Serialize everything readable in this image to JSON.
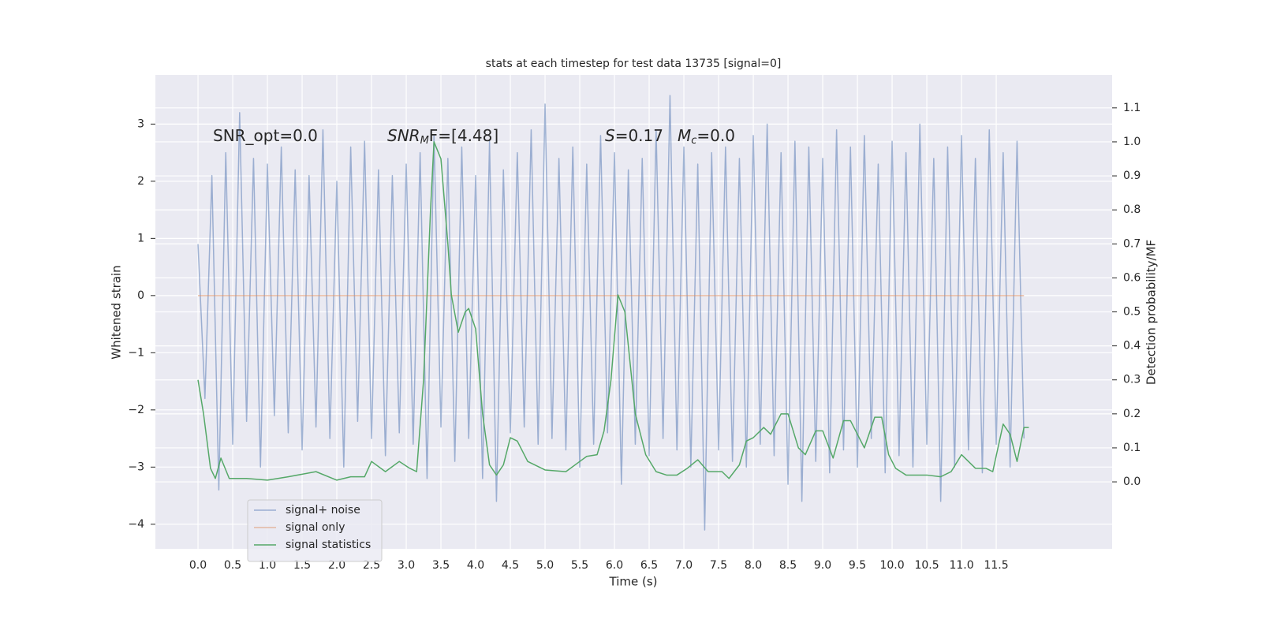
{
  "chart_data": {
    "type": "line",
    "title": "stats at each timestep for test data 13735 [signal=0]",
    "xlabel": "Time (s)",
    "ylabel": "Whitened strain",
    "y2label": "Detection probability/MF",
    "grid": true,
    "legend": "lower left",
    "xlim": [
      -0.614,
      13.17
    ],
    "ylim": [
      -4.43,
      3.86
    ],
    "y2lim": [
      -0.197,
      1.197
    ],
    "xticks": [
      {
        "value": 0,
        "label": "0.0"
      },
      0.5,
      {
        "value": 1,
        "label": "1.0"
      },
      1.5,
      {
        "value": 2,
        "label": "2.0"
      },
      2.5,
      {
        "value": 3,
        "label": "3.0"
      },
      3.5,
      {
        "value": 4,
        "label": "4.0"
      },
      4.5,
      {
        "value": 5,
        "label": "5.0"
      },
      5.5,
      {
        "value": 6,
        "label": "6.0"
      },
      6.5,
      {
        "value": 7,
        "label": "7.0"
      },
      7.5,
      {
        "value": 8,
        "label": "8.0"
      },
      8.5,
      {
        "value": 9,
        "label": "9.0"
      },
      9.5,
      {
        "value": 10,
        "label": "10.0"
      },
      10.5,
      {
        "value": 11,
        "label": "11.0"
      },
      11.5
    ],
    "yticks": [
      {
        "value": -4,
        "label": "−4"
      },
      {
        "value": -3,
        "label": "−3"
      },
      {
        "value": -2,
        "label": "−2"
      },
      {
        "value": -1,
        "label": "−1"
      },
      0,
      1,
      2,
      3
    ],
    "y2ticks": [
      {
        "value": 0,
        "label": "0.0"
      },
      0.1,
      0.2,
      0.3,
      0.4,
      0.5,
      0.6,
      0.7,
      0.8,
      0.9,
      {
        "value": 1,
        "label": "1.0"
      },
      1.1
    ],
    "annotations": [
      {
        "text": "SNR_opt=0.0"
      },
      {
        "italic": "SNR",
        "sub": "M",
        "rest": "F=[4.48]"
      },
      {
        "italic": "S",
        "rest": "=0.17"
      },
      {
        "italic": "M",
        "sub": "c",
        "rest": "=0.0"
      }
    ],
    "series": [
      {
        "name": "signal+ noise",
        "color": "#4c72b0",
        "alpha": 0.5,
        "axis": "y",
        "x": [
          0.0,
          0.1,
          0.2,
          0.3,
          0.4,
          0.5,
          0.6,
          0.7,
          0.8,
          0.9,
          1.0,
          1.1,
          1.2,
          1.3,
          1.4,
          1.5,
          1.6,
          1.7,
          1.8,
          1.9,
          2.0,
          2.1,
          2.2,
          2.3,
          2.4,
          2.5,
          2.6,
          2.7,
          2.8,
          2.9,
          3.0,
          3.1,
          3.2,
          3.3,
          3.4,
          3.5,
          3.6,
          3.7,
          3.8,
          3.9,
          4.0,
          4.1,
          4.2,
          4.3,
          4.4,
          4.5,
          4.6,
          4.7,
          4.8,
          4.9,
          5.0,
          5.1,
          5.2,
          5.3,
          5.4,
          5.5,
          5.6,
          5.7,
          5.8,
          5.9,
          6.0,
          6.1,
          6.2,
          6.3,
          6.4,
          6.5,
          6.6,
          6.7,
          6.8,
          6.9,
          7.0,
          7.1,
          7.2,
          7.3,
          7.4,
          7.5,
          7.6,
          7.7,
          7.8,
          7.9,
          8.0,
          8.1,
          8.2,
          8.3,
          8.4,
          8.5,
          8.6,
          8.7,
          8.8,
          8.9,
          9.0,
          9.1,
          9.2,
          9.3,
          9.4,
          9.5,
          9.6,
          9.7,
          9.8,
          9.9,
          10.0,
          10.1,
          10.2,
          10.3,
          10.4,
          10.5,
          10.6,
          10.7,
          10.8,
          10.9,
          11.0,
          11.1,
          11.2,
          11.3,
          11.4,
          11.5,
          11.6,
          11.7,
          11.8,
          11.9
        ],
        "values": [
          0.9,
          -1.8,
          2.1,
          -3.4,
          2.5,
          -2.6,
          3.2,
          -2.2,
          2.4,
          -3.0,
          2.3,
          -2.1,
          2.6,
          -2.4,
          2.2,
          -2.7,
          2.1,
          -2.3,
          2.9,
          -2.5,
          2.0,
          -3.0,
          2.6,
          -2.2,
          2.7,
          -2.5,
          2.2,
          -2.8,
          2.1,
          -2.4,
          2.3,
          -2.6,
          2.5,
          -3.2,
          2.8,
          -2.3,
          2.4,
          -2.9,
          2.6,
          -2.5,
          2.1,
          -3.2,
          2.7,
          -3.6,
          2.2,
          -2.4,
          2.5,
          -2.3,
          2.9,
          -2.6,
          3.35,
          -2.5,
          2.4,
          -2.7,
          2.6,
          -3.0,
          2.3,
          -2.6,
          2.8,
          -2.4,
          2.5,
          -3.3,
          2.2,
          -2.6,
          2.4,
          -2.8,
          2.9,
          -2.5,
          3.5,
          -2.7,
          2.6,
          -3.0,
          2.3,
          -4.1,
          2.5,
          -2.7,
          2.6,
          -2.9,
          2.4,
          -3.0,
          2.8,
          -2.6,
          3.0,
          -2.8,
          2.5,
          -3.3,
          2.7,
          -3.6,
          2.6,
          -2.9,
          2.4,
          -3.1,
          2.9,
          -2.7,
          2.6,
          -3.0,
          2.8,
          -2.5,
          2.3,
          -3.1,
          2.7,
          -2.8,
          2.5,
          -3.0,
          3.0,
          -2.6,
          2.4,
          -3.6,
          2.6,
          -3.0,
          2.8,
          -2.7,
          2.4,
          -3.1,
          2.9,
          -2.6,
          2.5,
          -3.0,
          2.7,
          -2.5
        ]
      },
      {
        "name": "signal only",
        "color": "#dd8452",
        "alpha": 0.5,
        "axis": "y",
        "x": [
          0.0,
          11.9
        ],
        "values": [
          0,
          0
        ]
      },
      {
        "name": "signal statistics",
        "color": "#55a868",
        "alpha": 1,
        "axis": "y2",
        "x": [
          0.0,
          0.08,
          0.18,
          0.25,
          0.33,
          0.45,
          0.7,
          1.0,
          1.3,
          1.7,
          2.0,
          2.2,
          2.4,
          2.5,
          2.7,
          2.9,
          3.05,
          3.15,
          3.25,
          3.35,
          3.4,
          3.5,
          3.6,
          3.65,
          3.75,
          3.85,
          3.9,
          4.0,
          4.1,
          4.2,
          4.3,
          4.4,
          4.5,
          4.6,
          4.75,
          5.0,
          5.3,
          5.5,
          5.6,
          5.75,
          5.85,
          5.95,
          6.05,
          6.15,
          6.3,
          6.45,
          6.6,
          6.75,
          6.9,
          7.05,
          7.2,
          7.35,
          7.55,
          7.65,
          7.8,
          7.9,
          8.0,
          8.15,
          8.25,
          8.4,
          8.5,
          8.65,
          8.75,
          8.9,
          9.0,
          9.15,
          9.3,
          9.4,
          9.6,
          9.75,
          9.85,
          9.95,
          10.05,
          10.2,
          10.5,
          10.7,
          10.85,
          11.0,
          11.1,
          11.2,
          11.35,
          11.45,
          11.6,
          11.7,
          11.8,
          11.9,
          11.97
        ],
        "values": [
          0.3,
          0.2,
          0.04,
          0.01,
          0.07,
          0.01,
          0.01,
          0.005,
          0.015,
          0.03,
          0.005,
          0.015,
          0.015,
          0.06,
          0.03,
          0.06,
          0.04,
          0.03,
          0.3,
          0.8,
          1.0,
          0.95,
          0.7,
          0.55,
          0.44,
          0.5,
          0.51,
          0.45,
          0.2,
          0.05,
          0.02,
          0.05,
          0.13,
          0.12,
          0.06,
          0.035,
          0.03,
          0.06,
          0.075,
          0.08,
          0.15,
          0.3,
          0.55,
          0.5,
          0.2,
          0.08,
          0.03,
          0.02,
          0.02,
          0.04,
          0.065,
          0.03,
          0.03,
          0.01,
          0.05,
          0.12,
          0.13,
          0.16,
          0.14,
          0.2,
          0.2,
          0.1,
          0.08,
          0.15,
          0.15,
          0.07,
          0.18,
          0.18,
          0.1,
          0.19,
          0.19,
          0.08,
          0.04,
          0.02,
          0.02,
          0.015,
          0.03,
          0.08,
          0.06,
          0.04,
          0.04,
          0.03,
          0.17,
          0.14,
          0.06,
          0.16,
          0.16
        ]
      }
    ]
  }
}
